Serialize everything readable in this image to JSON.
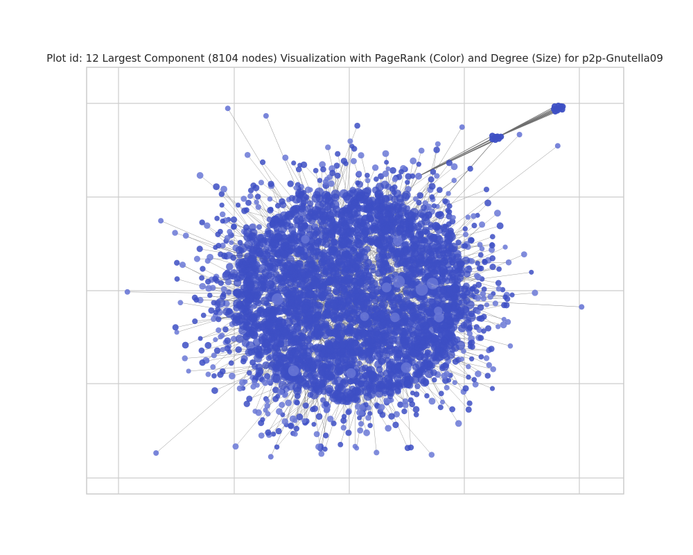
{
  "figure": {
    "title": "Plot id: 12 Largest Component (8104 nodes) Visualization with PageRank (Color) and Degree (Size) for p2p-Gnutella09"
  },
  "chart_data": {
    "type": "scatter",
    "title": "Plot id: 12 Largest Component (8104 nodes) Visualization with PageRank (Color) and Degree (Size) for p2p-Gnutella09",
    "xlabel": "",
    "ylabel": "",
    "node_count": 8104,
    "grid": true,
    "axis_tick_labels_visible": false,
    "colors": {
      "background": "#ffffff",
      "grid": "#cccccc",
      "frame": "#cccccc",
      "node": "#3d4fc4",
      "node_light": "#6a78d6",
      "edge": "#6e6e6e"
    },
    "outlier_nodes": [
      {
        "x": 0.02,
        "y": 0.48
      },
      {
        "x": 0.97,
        "y": 0.44
      },
      {
        "x": 0.08,
        "y": 0.05
      },
      {
        "x": 0.32,
        "y": 0.04
      },
      {
        "x": 0.23,
        "y": 0.97
      },
      {
        "x": 0.72,
        "y": 0.92
      },
      {
        "x": 0.84,
        "y": 0.9
      },
      {
        "x": 0.92,
        "y": 0.87
      },
      {
        "x": 0.31,
        "y": 0.95
      },
      {
        "x": 0.09,
        "y": 0.67
      }
    ],
    "clusters": [
      {
        "x": 0.92,
        "y": 0.97,
        "count": 9
      },
      {
        "x": 0.79,
        "y": 0.89,
        "count": 7
      }
    ]
  }
}
